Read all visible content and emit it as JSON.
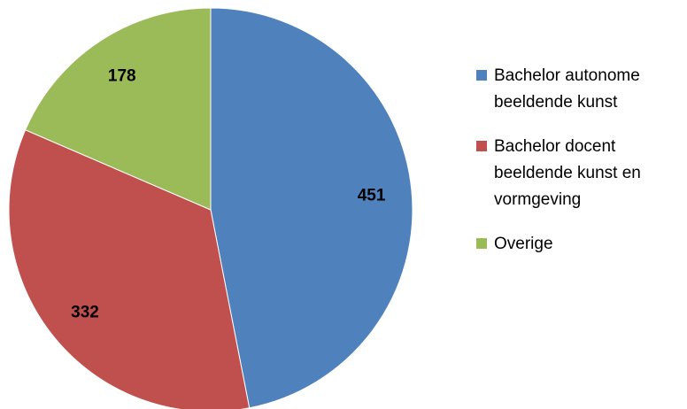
{
  "chart_data": {
    "type": "pie",
    "title": "",
    "start_angle_deg": 0,
    "direction": "clockwise",
    "legend_position": "right",
    "slices": [
      {
        "label": "Bachelor autonome beeldende kunst",
        "legend_lines": [
          "Bachelor autonome",
          "beeldende kunst"
        ],
        "value": 451,
        "value_label": "451",
        "color": "#4F81BD"
      },
      {
        "label": "Bachelor docent beeldende kunst en vormgeving",
        "legend_lines": [
          "Bachelor docent",
          "beeldende kunst en",
          "vormgeving"
        ],
        "value": 332,
        "value_label": "332",
        "color": "#C0504D"
      },
      {
        "label": "Overige",
        "legend_lines": [
          "Overige"
        ],
        "value": 178,
        "value_label": "178",
        "color": "#9BBB59"
      }
    ]
  }
}
